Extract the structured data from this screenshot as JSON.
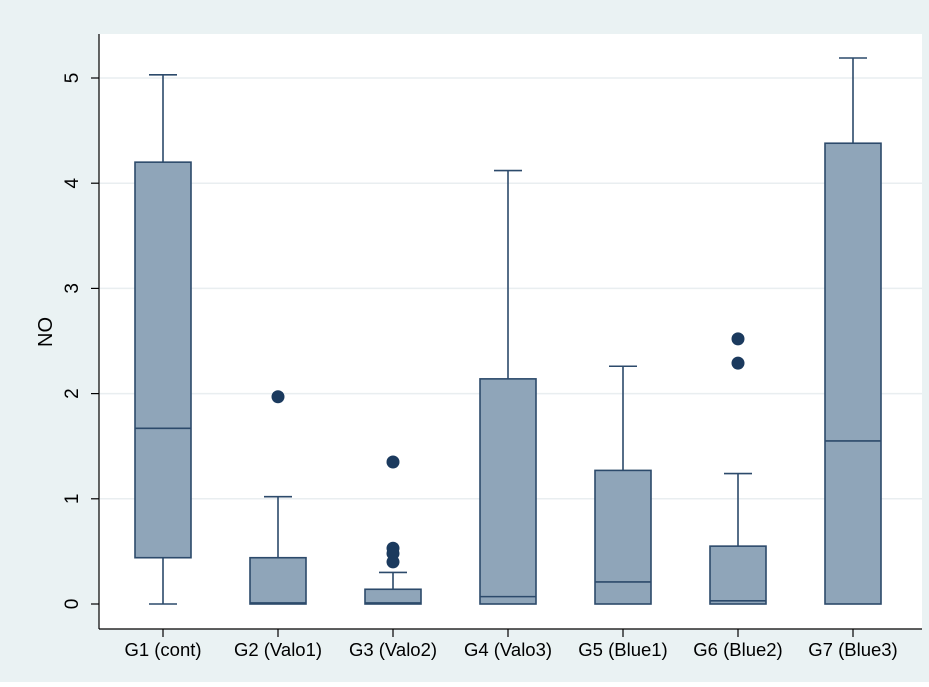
{
  "chart_data": {
    "type": "box",
    "ylabel": "NO",
    "ylim": [
      -0.2,
      5.45
    ],
    "yticks": [
      0,
      1,
      2,
      3,
      4,
      5
    ],
    "ytick_labels": [
      "0",
      "1",
      "2",
      "3",
      "4",
      "5"
    ],
    "grid": true,
    "categories": [
      "G1 (cont)",
      "G2 (Valo1)",
      "G3 (Valo2)",
      "G4 (Valo3)",
      "G5 (Blue1)",
      "G6 (Blue2)",
      "G7 (Blue3)"
    ],
    "boxes": [
      {
        "whisker_low": 0.0,
        "q1": 0.44,
        "median": 1.67,
        "q3": 4.2,
        "whisker_high": 5.03,
        "outliers": []
      },
      {
        "whisker_low": 0.0,
        "q1": 0.0,
        "median": 0.01,
        "q3": 0.44,
        "whisker_high": 1.02,
        "outliers": [
          1.97
        ]
      },
      {
        "whisker_low": 0.0,
        "q1": 0.0,
        "median": 0.01,
        "q3": 0.14,
        "whisker_high": 0.3,
        "outliers": [
          1.35,
          0.53,
          0.48,
          0.4
        ]
      },
      {
        "whisker_low": 0.0,
        "q1": 0.0,
        "median": 0.07,
        "q3": 2.14,
        "whisker_high": 4.12,
        "outliers": []
      },
      {
        "whisker_low": 0.0,
        "q1": 0.0,
        "median": 0.21,
        "q3": 1.27,
        "whisker_high": 2.26,
        "outliers": []
      },
      {
        "whisker_low": 0.0,
        "q1": 0.0,
        "median": 0.03,
        "q3": 0.55,
        "whisker_high": 1.24,
        "outliers": [
          2.52,
          2.29
        ]
      },
      {
        "whisker_low": 0.0,
        "q1": 0.0,
        "median": 1.55,
        "q3": 4.38,
        "whisker_high": 5.19,
        "outliers": []
      }
    ],
    "colors": {
      "outer_background": "#eaf2f3",
      "plot_background": "#ffffff",
      "box_fill": "#8fa5b9",
      "box_line": "#2c4a6b",
      "outlier": "#1b3a5e",
      "grid": "#e9eef0",
      "axis": "#000000",
      "text": "#000000"
    }
  }
}
